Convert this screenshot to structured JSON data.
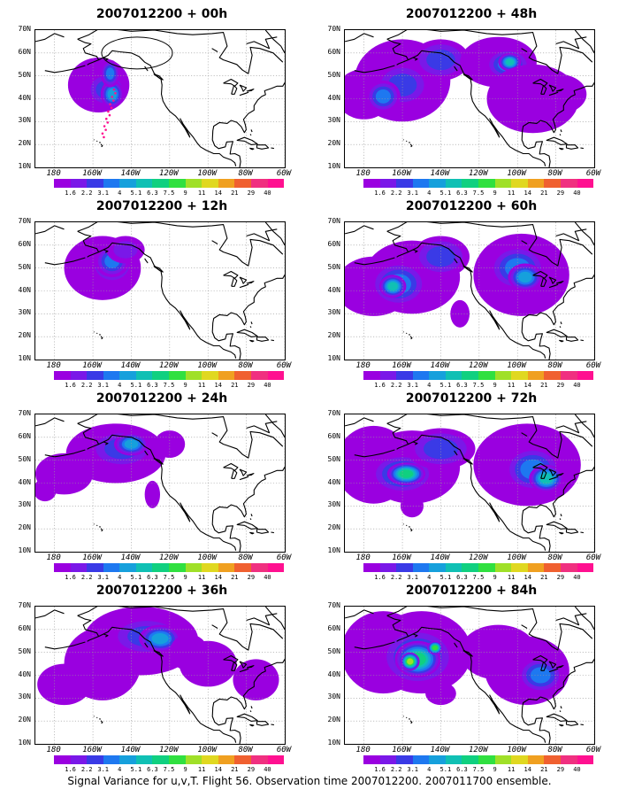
{
  "panels": [
    {
      "title": "2007012200 + 00h",
      "field": "f00"
    },
    {
      "title": "2007012200 + 48h",
      "field": "f48"
    },
    {
      "title": "2007012200 + 12h",
      "field": "f12"
    },
    {
      "title": "2007012200 + 60h",
      "field": "f60"
    },
    {
      "title": "2007012200 + 24h",
      "field": "f24"
    },
    {
      "title": "2007012200 + 72h",
      "field": "f72"
    },
    {
      "title": "2007012200 + 36h",
      "field": "f36"
    },
    {
      "title": "2007012200 + 84h",
      "field": "f84"
    }
  ],
  "axes": {
    "lat_labels": [
      "70N",
      "60N",
      "50N",
      "40N",
      "30N",
      "20N",
      "10N"
    ],
    "lon_labels": [
      "180",
      "160W",
      "140W",
      "120W",
      "100W",
      "80W",
      "60W"
    ]
  },
  "colorbar": {
    "labels": [
      "1.6",
      "2.2",
      "3.1",
      "4",
      "5.1",
      "6.3",
      "7.5",
      "9",
      "11",
      "14",
      "21",
      "29",
      "40"
    ],
    "colors": [
      "#9a00e0",
      "#7a18e8",
      "#3a3ae6",
      "#1e78f0",
      "#16a0dc",
      "#10c0b4",
      "#10d080",
      "#30e040",
      "#a0e028",
      "#e0d820",
      "#f0a020",
      "#f06030",
      "#f03080",
      "#ff1090"
    ]
  },
  "caption": "Signal Variance for u,v,T. Flight 56. Observation time 2007012200. 2007011700 ensemble."
}
